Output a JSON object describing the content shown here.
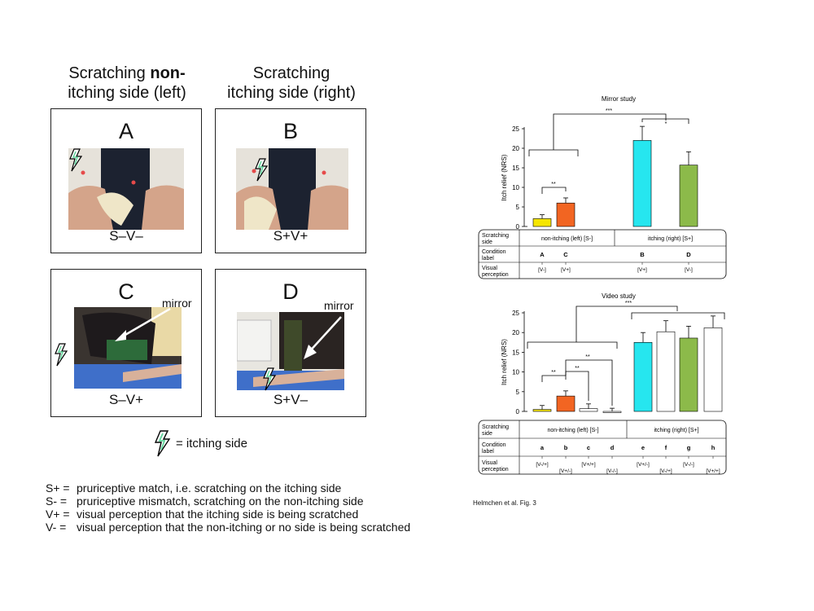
{
  "columns": {
    "left": {
      "line1_plain": "Scratching ",
      "line1_bold": "non-",
      "line2": "itching side (left)"
    },
    "right": {
      "line1": "Scratching",
      "line2": "itching side (right)"
    }
  },
  "panels": [
    {
      "letter": "A",
      "code": "S–V–"
    },
    {
      "letter": "B",
      "code": "S+V+"
    },
    {
      "letter": "C",
      "code": "S–V+",
      "mirror": "mirror"
    },
    {
      "letter": "D",
      "code": "S+V–",
      "mirror": "mirror"
    }
  ],
  "icon_legend": {
    "icon": "lightning-bolt-icon",
    "text": "= itching side"
  },
  "definitions": [
    {
      "key": "S+ =",
      "text": "pruriceptive match, i.e. scratching on the itching side"
    },
    {
      "key": "S- =",
      "text": "pruriceptive mismatch, scratching on the non-itching side"
    },
    {
      "key": "V+ =",
      "text": "visual perception that the itching side is being scratched"
    },
    {
      "key": "V- =",
      "text": "visual perception that the non-itching or no side is being scratched"
    }
  ],
  "caption": "Helmchen et al. Fig. 3",
  "colors": {
    "yellow": "#f5e600",
    "orange": "#f26522",
    "cyan": "#26e6ef",
    "green": "#8cba4a",
    "white": "#ffffff"
  },
  "chart_data": [
    {
      "type": "bar",
      "title": "Mirror study",
      "ylabel": "Itch relief (NRS)",
      "ylim": [
        0,
        25
      ],
      "yticks": [
        "0",
        "5",
        "10",
        "15",
        "20",
        "25"
      ],
      "categories": [
        "A",
        "C",
        "B",
        "D"
      ],
      "values": [
        2,
        6,
        22,
        15.7
      ],
      "errors": [
        1,
        1.3,
        3.6,
        3.4
      ],
      "bar_colors": [
        "#f5e600",
        "#f26522",
        "#26e6ef",
        "#8cba4a"
      ],
      "significance": [
        "***",
        "**",
        "*"
      ],
      "table": {
        "row_labels": [
          "Scratching side",
          "Condition label",
          "Visual perception"
        ],
        "groups": [
          "non-itching (left)   [S-]",
          "itching (right)   [S+]"
        ],
        "visual": [
          "[V-]",
          "[V+]",
          "[V+]",
          "[V-]"
        ]
      }
    },
    {
      "type": "bar",
      "title": "Video study",
      "ylabel": "Itch relief (NRS)",
      "ylim": [
        0,
        25
      ],
      "yticks": [
        "0",
        "5",
        "10",
        "15",
        "20",
        "25"
      ],
      "categories": [
        "a",
        "b",
        "c",
        "d",
        "e",
        "f",
        "g",
        "h"
      ],
      "values": [
        0.5,
        3.9,
        0.7,
        0,
        17.5,
        20.2,
        18.6,
        21.2
      ],
      "errors": [
        1,
        1.3,
        1.2,
        0.8,
        2.5,
        2.8,
        3,
        3
      ],
      "bar_colors": [
        "#f5e600",
        "#f26522",
        "#ffffff",
        "#ffffff",
        "#26e6ef",
        "#ffffff",
        "#8cba4a",
        "#ffffff"
      ],
      "significance": [
        "***",
        "**",
        "**",
        "**"
      ],
      "table": {
        "row_labels": [
          "Scratching side",
          "Condition label",
          "Visual perception"
        ],
        "groups": [
          "non-itching (left)   [S-]",
          "itching (right)   [S+]"
        ],
        "visual": [
          "[V-/+]",
          "[V+/-]",
          "[V+/+]",
          "[V-/-]",
          "[V+/-]",
          "[V-/+]",
          "[V-/-]",
          "[V+/+]"
        ]
      }
    }
  ]
}
